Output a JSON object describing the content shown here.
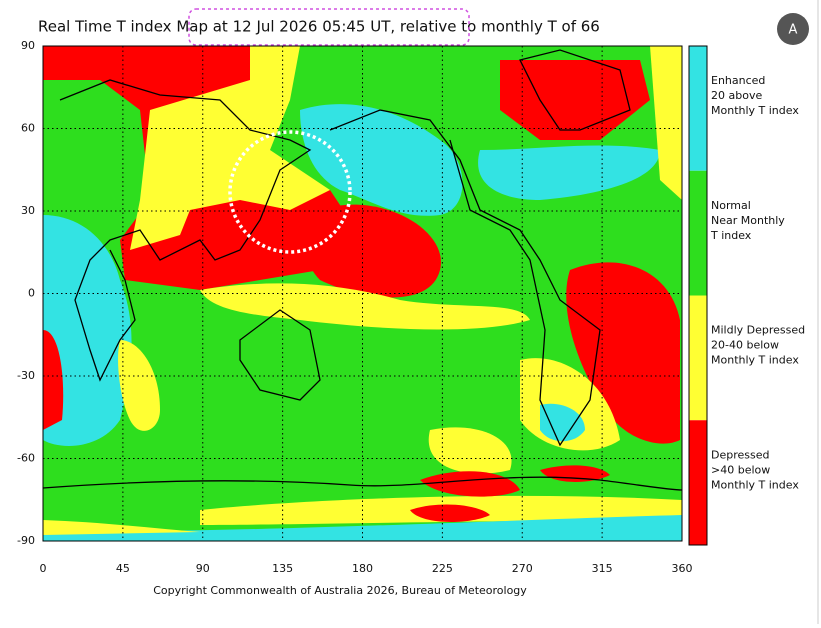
{
  "title": "Real Time T index Map at 12 Jul 2026 05:45 UT, relative to monthly T of 66",
  "map": {
    "xlim": [
      0,
      360
    ],
    "ylim": [
      -90,
      90
    ],
    "xticks": [
      0,
      45,
      90,
      135,
      180,
      225,
      270,
      315,
      360
    ],
    "yticks": [
      90,
      60,
      30,
      0,
      -30,
      -60,
      -90
    ]
  },
  "legend": [
    {
      "lines": [
        "Enhanced",
        "20 above",
        "Monthly T index"
      ],
      "color": "#33e3e3"
    },
    {
      "lines": [
        "Normal",
        "Near Monthly",
        "T index"
      ],
      "color": "#2ede1e"
    },
    {
      "lines": [
        "Mildly Depressed",
        "20-40 below",
        "Monthly T index"
      ],
      "color": "#ffff33"
    },
    {
      "lines": [
        "Depressed",
        ">40 below",
        "Monthly T index"
      ],
      "color": "#ff0000"
    }
  ],
  "copyright": "Copyright Commonwealth of Australia 2026, Bureau of Meteorology"
}
